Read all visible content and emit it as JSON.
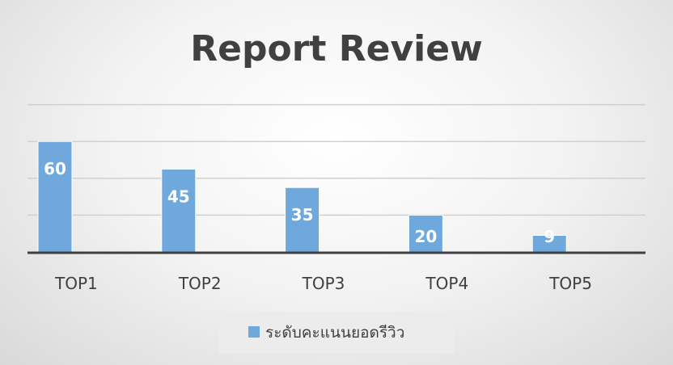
{
  "chart_data": {
    "type": "bar",
    "title": "Report Review",
    "categories": [
      "TOP1",
      "TOP2",
      "TOP3",
      "TOP4",
      "TOP5"
    ],
    "series": [
      {
        "name": "ระดับคะแนนยอดรีวิว",
        "values": [
          60,
          45,
          35,
          20,
          9
        ]
      }
    ],
    "ylim": [
      0,
      80
    ],
    "grid": true,
    "legend": "bottom",
    "data_labels": true,
    "colors": {
      "bar": "#6fa8dc",
      "bar_edge": "#ffffff",
      "gridline": "#d0d0d0",
      "axis": "#404040"
    }
  }
}
